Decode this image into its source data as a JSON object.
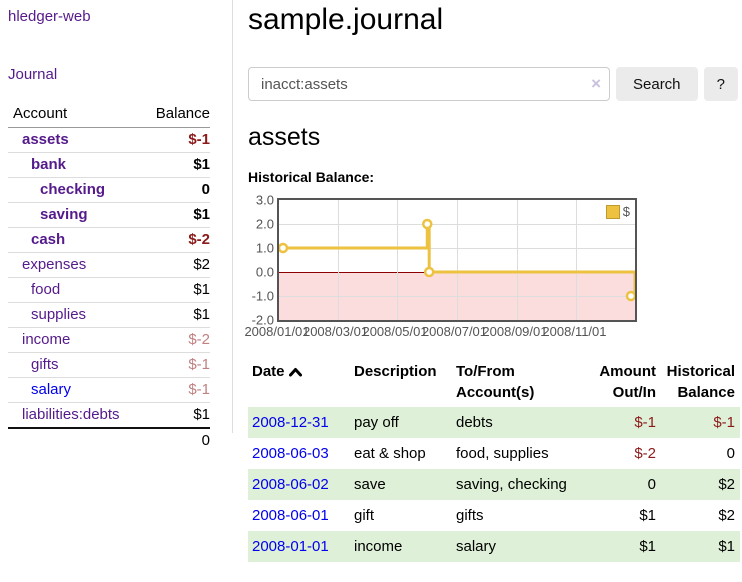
{
  "app": {
    "title": "hledger-web"
  },
  "nav": {
    "journal_label": "Journal"
  },
  "sidebar_table": {
    "headers": {
      "account": "Account",
      "balance": "Balance"
    },
    "rows": [
      {
        "name": "assets",
        "balance": "$-1"
      },
      {
        "name": "bank",
        "balance": "$1"
      },
      {
        "name": "checking",
        "balance": "0"
      },
      {
        "name": "saving",
        "balance": "$1"
      },
      {
        "name": "cash",
        "balance": "$-2"
      },
      {
        "name": "expenses",
        "balance": "$2"
      },
      {
        "name": "food",
        "balance": "$1"
      },
      {
        "name": "supplies",
        "balance": "$1"
      },
      {
        "name": "income",
        "balance": "$-2"
      },
      {
        "name": "gifts",
        "balance": "$-1"
      },
      {
        "name": "salary",
        "balance": "$-1"
      },
      {
        "name": "liabilities:debts",
        "balance": "$1"
      }
    ],
    "total": "0"
  },
  "main": {
    "title": "sample.journal",
    "search": {
      "value": "inacct:assets",
      "clear_icon": "×",
      "search_button": "Search",
      "help_button": "?"
    },
    "account_heading": "assets",
    "chart_label": "Historical Balance:"
  },
  "chart_data": {
    "type": "line",
    "steps": true,
    "title": "Historical Balance",
    "legend_label": "$",
    "legend_position": "top-right",
    "grid": true,
    "ylim": [
      -2.0,
      3.0
    ],
    "x_range": [
      "2008-01-01",
      "2008-12-31"
    ],
    "y_ticks": [
      {
        "label": "3.0",
        "value": 3
      },
      {
        "label": "2.0",
        "value": 2
      },
      {
        "label": "1.0",
        "value": 1
      },
      {
        "label": "0.0",
        "value": 0
      },
      {
        "label": "-1.0",
        "value": -1
      },
      {
        "label": "-2.0",
        "value": -2
      }
    ],
    "x_ticks": [
      {
        "label": "2008/01/01",
        "date": "2008-01-01"
      },
      {
        "label": "2008/03/01",
        "date": "2008-03-01"
      },
      {
        "label": "2008/05/01",
        "date": "2008-05-01"
      },
      {
        "label": "2008/07/01",
        "date": "2008-07-01"
      },
      {
        "label": "2008/09/01",
        "date": "2008-09-01"
      },
      {
        "label": "2008/11/01",
        "date": "2008-11-01"
      }
    ],
    "points": [
      {
        "date": "2008-01-01",
        "value": 1
      },
      {
        "date": "2008-06-01",
        "value": 2
      },
      {
        "date": "2008-06-03",
        "value": 0
      },
      {
        "date": "2008-12-31",
        "value": -1
      }
    ],
    "colors": {
      "line": "#EDC240",
      "marker_fill": "#FFFFFF",
      "negative_region_fill": "#FBDDDD",
      "zero_line": "#8B0000",
      "gridline": "#DDDDDD",
      "plot_border": "#545454"
    }
  },
  "register_table": {
    "headers": {
      "date": "Date",
      "description": "Description",
      "accounts": "To/From Account(s)",
      "amount": "Amount Out/In",
      "balance": "Historical Balance"
    },
    "rows": [
      {
        "date": "2008-12-31",
        "description": "pay off",
        "accounts": "debts",
        "amount": "$-1",
        "balance": "$-1"
      },
      {
        "date": "2008-06-03",
        "description": "eat & shop",
        "accounts": "food, supplies",
        "amount": "$-2",
        "balance": "0"
      },
      {
        "date": "2008-06-02",
        "description": "save",
        "accounts": "saving, checking",
        "amount": "0",
        "balance": "$2"
      },
      {
        "date": "2008-06-01",
        "description": "gift",
        "accounts": "gifts",
        "amount": "$1",
        "balance": "$2"
      },
      {
        "date": "2008-01-01",
        "description": "income",
        "accounts": "salary",
        "amount": "$1",
        "balance": "$1"
      }
    ]
  },
  "ui_colors": {
    "visited_link_purple": "#551A8B",
    "unvisited_link_blue": "#0000EE",
    "negative_dark_red": "#8B1A1A",
    "negative_rose": "#C08181",
    "row_green": "#DFF0D8",
    "button_gray": "#EBEBEB"
  }
}
